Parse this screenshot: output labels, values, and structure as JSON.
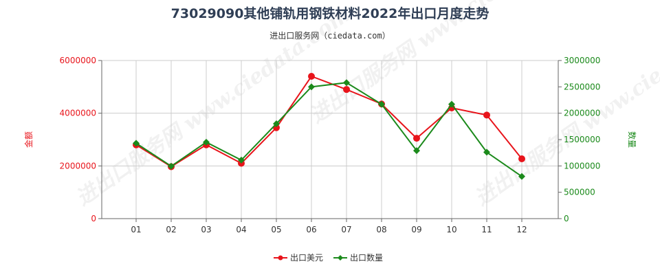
{
  "title": "73029090其他铺轨用钢铁材料2022年出口月度走势",
  "subtitle": "进出口服务网（ciedata.com）",
  "watermark": "进出口服务网 www.ciedata.com",
  "colors": {
    "money": "#e8141b",
    "quantity": "#1b8a1b",
    "grid": "#cccccc",
    "axis": "#666666"
  },
  "chart_data": {
    "type": "line",
    "categories": [
      "01",
      "02",
      "03",
      "04",
      "05",
      "06",
      "07",
      "08",
      "09",
      "10",
      "11",
      "12"
    ],
    "left_axis": {
      "label": "金额",
      "ylim": [
        0,
        6000000
      ],
      "ticks": [
        "0",
        "2000000",
        "4000000",
        "6000000"
      ],
      "tick_values": [
        0,
        2000000,
        4000000,
        6000000
      ]
    },
    "right_axis": {
      "label": "数量",
      "ylim": [
        0,
        3000000
      ],
      "ticks": [
        "0",
        "500000",
        "1000000",
        "1500000",
        "2000000",
        "2500000",
        "3000000"
      ],
      "tick_values": [
        0,
        500000,
        1000000,
        1500000,
        2000000,
        2500000,
        3000000
      ]
    },
    "series": [
      {
        "name": "出口美元",
        "axis": "left",
        "marker": "circle",
        "values": [
          2800000,
          1970000,
          2800000,
          2100000,
          3450000,
          5400000,
          4900000,
          4350000,
          3050000,
          4200000,
          3930000,
          2270000
        ]
      },
      {
        "name": "出口数量",
        "axis": "right",
        "marker": "diamond",
        "values": [
          1430000,
          995000,
          1450000,
          1110000,
          1800000,
          2500000,
          2580000,
          2170000,
          1290000,
          2170000,
          1260000,
          800000
        ]
      }
    ],
    "legend_position": "bottom-center",
    "grid": true
  }
}
